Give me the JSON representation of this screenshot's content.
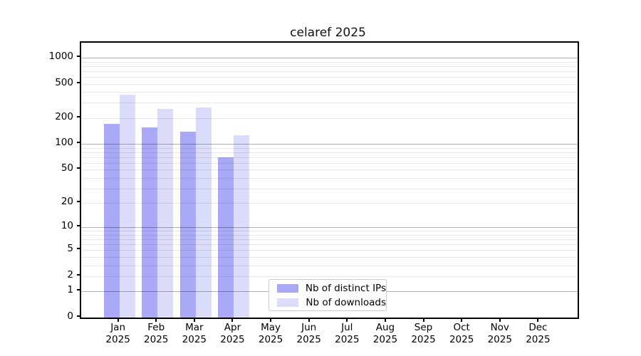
{
  "title": "celaref 2025",
  "chart_data": {
    "type": "bar",
    "title": "celaref 2025",
    "categories": [
      "Jan",
      "Feb",
      "Mar",
      "Apr",
      "May",
      "Jun",
      "Jul",
      "Aug",
      "Sep",
      "Oct",
      "Nov",
      "Dec"
    ],
    "year": "2025",
    "series": [
      {
        "name": "Nb of distinct IPs",
        "color": "#a9a9f7",
        "values": [
          170,
          155,
          140,
          70,
          0,
          0,
          0,
          0,
          0,
          0,
          0,
          0
        ]
      },
      {
        "name": "Nb of downloads",
        "color": "#dbdbfa",
        "values": [
          370,
          255,
          265,
          125,
          0,
          0,
          0,
          0,
          0,
          0,
          0,
          0
        ]
      }
    ],
    "yscale": "log1p",
    "yticks": [
      0,
      1,
      2,
      5,
      10,
      20,
      50,
      100,
      200,
      500,
      1000
    ],
    "major_grid_values": [
      1,
      10,
      100,
      1000
    ],
    "ylim": [
      0,
      1500
    ],
    "xlabel": "",
    "ylabel": "",
    "grid": "on",
    "legend_position": "inside-bottom-center",
    "colors": {
      "major_grid": "rgba(0,0,0,0.31)",
      "minor_grid": "rgba(0,0,0,0.09)",
      "axis": "#000000",
      "background": "#ffffff"
    }
  }
}
